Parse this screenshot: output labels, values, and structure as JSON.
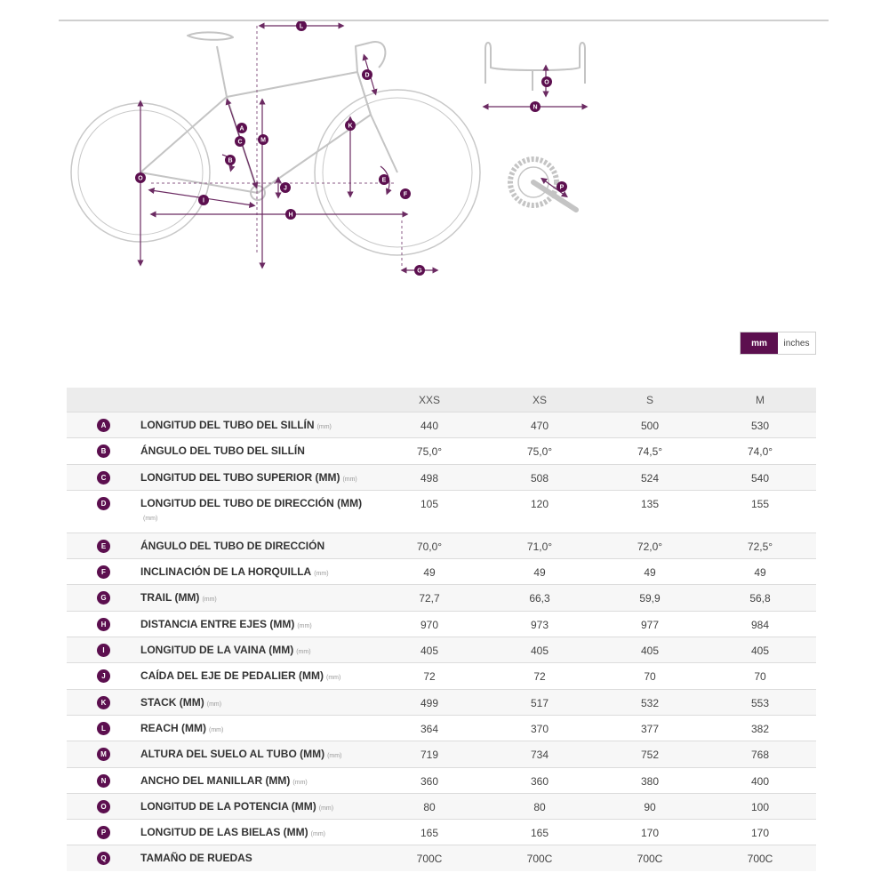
{
  "diagram_labels": [
    "A",
    "B",
    "C",
    "D",
    "E",
    "F",
    "G",
    "H",
    "I",
    "J",
    "K",
    "L",
    "M",
    "N",
    "O",
    "P"
  ],
  "unit_toggle": {
    "active": "mm",
    "inactive": "inches"
  },
  "sizes": [
    "XXS",
    "XS",
    "S",
    "M"
  ],
  "accent_color": "#5c0f4f",
  "rows": [
    {
      "letter": "A",
      "label": "LONGITUD DEL TUBO DEL SILLÍN",
      "unit": "(mm)",
      "values": [
        "440",
        "470",
        "500",
        "530"
      ]
    },
    {
      "letter": "B",
      "label": "ÁNGULO DEL TUBO DEL SILLÍN",
      "unit": "",
      "values": [
        "75,0°",
        "75,0°",
        "74,5°",
        "74,0°"
      ]
    },
    {
      "letter": "C",
      "label": "LONGITUD DEL TUBO SUPERIOR (MM)",
      "unit": "(mm)",
      "values": [
        "498",
        "508",
        "524",
        "540"
      ]
    },
    {
      "letter": "D",
      "label": "LONGITUD DEL TUBO DE DIRECCIÓN (MM)",
      "unit": "(mm)",
      "values": [
        "105",
        "120",
        "135",
        "155"
      ],
      "tall": true
    },
    {
      "letter": "E",
      "label": "ÁNGULO DEL TUBO DE DIRECCIÓN",
      "unit": "",
      "values": [
        "70,0°",
        "71,0°",
        "72,0°",
        "72,5°"
      ]
    },
    {
      "letter": "F",
      "label": "INCLINACIÓN DE LA HORQUILLA",
      "unit": "(mm)",
      "values": [
        "49",
        "49",
        "49",
        "49"
      ]
    },
    {
      "letter": "G",
      "label": "TRAIL (MM)",
      "unit": "(mm)",
      "values": [
        "72,7",
        "66,3",
        "59,9",
        "56,8"
      ]
    },
    {
      "letter": "H",
      "label": "DISTANCIA ENTRE EJES (MM)",
      "unit": "(mm)",
      "values": [
        "970",
        "973",
        "977",
        "984"
      ]
    },
    {
      "letter": "I",
      "label": "LONGITUD DE LA VAINA (MM)",
      "unit": "(mm)",
      "values": [
        "405",
        "405",
        "405",
        "405"
      ]
    },
    {
      "letter": "J",
      "label": "CAÍDA DEL EJE DE PEDALIER (MM)",
      "unit": "(mm)",
      "values": [
        "72",
        "72",
        "70",
        "70"
      ]
    },
    {
      "letter": "K",
      "label": "STACK (MM)",
      "unit": "(mm)",
      "values": [
        "499",
        "517",
        "532",
        "553"
      ]
    },
    {
      "letter": "L",
      "label": "REACH (MM)",
      "unit": "(mm)",
      "values": [
        "364",
        "370",
        "377",
        "382"
      ]
    },
    {
      "letter": "M",
      "label": "ALTURA DEL SUELO AL TUBO (MM)",
      "unit": "(mm)",
      "values": [
        "719",
        "734",
        "752",
        "768"
      ]
    },
    {
      "letter": "N",
      "label": "ANCHO DEL MANILLAR (MM)",
      "unit": "(mm)",
      "values": [
        "360",
        "360",
        "380",
        "400"
      ]
    },
    {
      "letter": "O",
      "label": "LONGITUD DE LA POTENCIA (MM)",
      "unit": "(mm)",
      "values": [
        "80",
        "80",
        "90",
        "100"
      ]
    },
    {
      "letter": "P",
      "label": "LONGITUD DE LAS BIELAS (MM)",
      "unit": "(mm)",
      "values": [
        "165",
        "165",
        "170",
        "170"
      ]
    },
    {
      "letter": "Q",
      "label": "TAMAÑO DE RUEDAS",
      "unit": "",
      "values": [
        "700C",
        "700C",
        "700C",
        "700C"
      ]
    }
  ]
}
